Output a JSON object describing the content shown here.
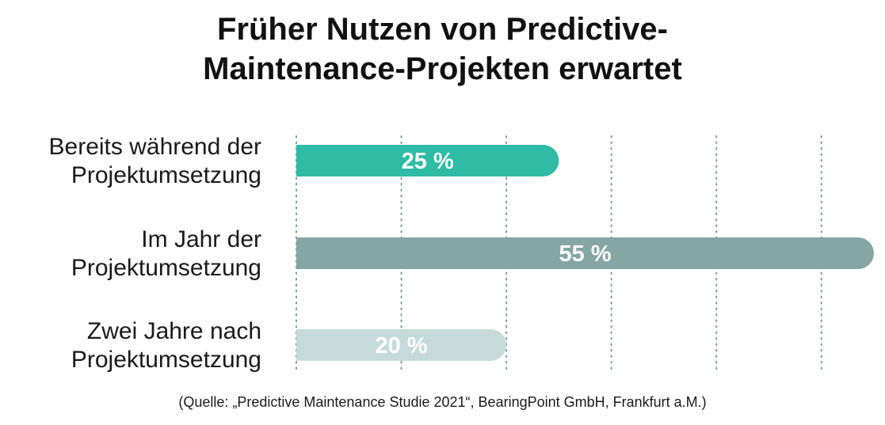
{
  "chart_data": {
    "type": "bar",
    "orientation": "horizontal",
    "title_lines": [
      "Früher Nutzen von Predictive-",
      "Maintenance-Projekten erwartet"
    ],
    "categories": [
      [
        "Bereits während der",
        "Projektumsetzung"
      ],
      [
        "Im Jahr der",
        "Projektumsetzung"
      ],
      [
        "Zwei Jahre nach",
        "Projektumsetzung"
      ]
    ],
    "values": [
      25,
      55,
      20
    ],
    "value_labels": [
      "25 %",
      "55 %",
      "20 %"
    ],
    "bar_colors": [
      "#2fbba6",
      "#86a5a5",
      "#c6dbd9"
    ],
    "xlim": [
      0,
      55
    ],
    "gridlines": [
      0,
      10,
      20,
      30,
      40,
      50
    ],
    "grid": true,
    "gridline_color": "#7b9a9c"
  },
  "source": "(Quelle: „Predictive Maintenance Studie 2021“, BearingPoint GmbH, Frankfurt a.M.)"
}
